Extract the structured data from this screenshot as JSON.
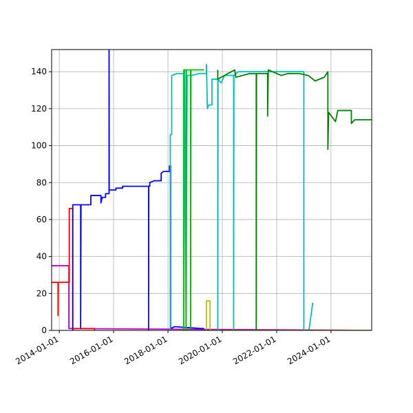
{
  "chart_data": {
    "type": "line",
    "title": "",
    "xlabel": "",
    "ylabel": "",
    "x_axis": {
      "type": "date",
      "range": [
        "2013-09-20",
        "2025-07-01"
      ],
      "ticks": [
        "2014-01-01",
        "2016-01-01",
        "2018-01-01",
        "2020-01-01",
        "2022-01-01",
        "2024-01-01"
      ],
      "tick_labels": [
        "2014-01-01",
        "2016-01-01",
        "2018-01-01",
        "2020-01-01",
        "2022-01-01",
        "2024-01-01"
      ]
    },
    "y_axis": {
      "range": [
        0,
        152
      ],
      "ticks": [
        0,
        20,
        40,
        60,
        80,
        100,
        120,
        140
      ],
      "tick_labels": [
        "0",
        "20",
        "40",
        "60",
        "80",
        "100",
        "120",
        "140"
      ]
    },
    "grid": true,
    "legend": "none",
    "series": [
      {
        "color": "#bf00bf",
        "points": [
          [
            "2013-09-20",
            35
          ],
          [
            "2014-05-10",
            35
          ],
          [
            "2014-05-10",
            1
          ],
          [
            "2014-06-01",
            1
          ],
          [
            "2025-07-01",
            0
          ]
        ]
      },
      {
        "color": "#ff0000",
        "points": [
          [
            "2013-09-20",
            26
          ],
          [
            "2013-12-15",
            26
          ],
          [
            "2013-12-15",
            8
          ],
          [
            "2013-12-18",
            26
          ],
          [
            "2014-05-15",
            26
          ],
          [
            "2014-05-15",
            66
          ],
          [
            "2014-07-01",
            66
          ],
          [
            "2014-07-01",
            1
          ],
          [
            "2014-09-01",
            1
          ],
          [
            "2015-04-20",
            1
          ],
          [
            "2015-04-20",
            0
          ]
        ]
      },
      {
        "color": "#0000ff",
        "points": [
          [
            "2014-07-01",
            0
          ],
          [
            "2014-07-01",
            68
          ],
          [
            "2014-10-15",
            68
          ],
          [
            "2014-10-15",
            1
          ],
          [
            "2014-10-20",
            68
          ],
          [
            "2015-03-01",
            68
          ],
          [
            "2015-03-01",
            73
          ],
          [
            "2015-07-15",
            73
          ],
          [
            "2015-07-15",
            69
          ],
          [
            "2015-08-01",
            72
          ],
          [
            "2015-09-15",
            72
          ],
          [
            "2015-09-15",
            74
          ],
          [
            "2015-11-01",
            74
          ],
          [
            "2015-11-01",
            152
          ],
          [
            "2015-11-03",
            76
          ],
          [
            "2016-02-01",
            76
          ],
          [
            "2016-02-01",
            77
          ],
          [
            "2016-05-01",
            77
          ],
          [
            "2016-05-01",
            78
          ],
          [
            "2017-04-15",
            78
          ],
          [
            "2017-04-15",
            0
          ],
          [
            "2017-04-17",
            78
          ],
          [
            "2017-05-01",
            78
          ],
          [
            "2017-05-01",
            80
          ],
          [
            "2017-07-01",
            81
          ],
          [
            "2017-10-01",
            81
          ],
          [
            "2017-10-01",
            85
          ],
          [
            "2017-11-01",
            86
          ],
          [
            "2018-01-20",
            86
          ],
          [
            "2018-01-20",
            89
          ],
          [
            "2018-02-05",
            89
          ],
          [
            "2018-02-05",
            1
          ],
          [
            "2018-04-01",
            2
          ],
          [
            "2019-04-01",
            1
          ],
          [
            "2019-05-01",
            1
          ]
        ]
      },
      {
        "color": "#00bfbf",
        "points": [
          [
            "2018-02-01",
            0
          ],
          [
            "2018-02-01",
            106
          ],
          [
            "2018-02-20",
            106
          ],
          [
            "2018-02-20",
            138
          ],
          [
            "2018-05-01",
            139
          ],
          [
            "2018-08-01",
            139
          ],
          [
            "2018-08-01",
            1
          ],
          [
            "2018-08-10",
            141
          ],
          [
            "2018-09-01",
            1
          ],
          [
            "2018-09-15",
            138
          ],
          [
            "2018-11-01",
            138
          ],
          [
            "2018-11-01",
            1
          ],
          [
            "2018-11-05",
            138
          ],
          [
            "2019-03-01",
            139
          ],
          [
            "2019-06-01",
            139
          ],
          [
            "2019-06-01",
            144
          ],
          [
            "2019-06-15",
            120
          ],
          [
            "2019-07-01",
            122
          ],
          [
            "2019-08-15",
            122
          ],
          [
            "2019-08-15",
            136
          ],
          [
            "2019-11-01",
            136
          ],
          [
            "2019-11-01",
            0
          ],
          [
            "2019-11-05",
            136
          ],
          [
            "2019-12-15",
            134
          ],
          [
            "2020-02-01",
            138
          ],
          [
            "2020-06-01",
            138
          ],
          [
            "2020-06-01",
            0
          ],
          [
            "2020-06-05",
            138
          ],
          [
            "2020-08-01",
            140
          ],
          [
            "2023-01-01",
            140
          ],
          [
            "2023-01-01",
            0
          ],
          [
            "2023-03-10",
            0
          ],
          [
            "2023-05-01",
            15
          ]
        ]
      },
      {
        "color": "#00bf00",
        "points": [
          [
            "2018-08-01",
            0
          ],
          [
            "2018-08-01",
            141
          ],
          [
            "2018-09-01",
            141
          ],
          [
            "2018-09-01",
            0
          ],
          [
            "2018-09-05",
            141
          ],
          [
            "2018-11-01",
            141
          ],
          [
            "2018-11-01",
            1
          ],
          [
            "2018-11-05",
            141
          ],
          [
            "2019-05-01",
            141
          ]
        ]
      },
      {
        "color": "#bfbf00",
        "points": [
          [
            "2019-06-01",
            0
          ],
          [
            "2019-06-01",
            16
          ],
          [
            "2019-07-20",
            16
          ],
          [
            "2019-07-20",
            0
          ],
          [
            "2025-07-01",
            0
          ]
        ]
      },
      {
        "color": "#008000",
        "points": [
          [
            "2019-11-01",
            141
          ],
          [
            "2019-11-01",
            136
          ],
          [
            "2020-06-15",
            141
          ],
          [
            "2020-07-01",
            137
          ],
          [
            "2021-01-01",
            139
          ],
          [
            "2021-04-01",
            139
          ],
          [
            "2021-04-01",
            0
          ],
          [
            "2021-04-05",
            139
          ],
          [
            "2021-09-01",
            139
          ],
          [
            "2021-09-01",
            116
          ],
          [
            "2021-09-10",
            141
          ],
          [
            "2022-03-01",
            138
          ],
          [
            "2022-06-01",
            139
          ],
          [
            "2022-11-01",
            139
          ],
          [
            "2023-03-01",
            138
          ],
          [
            "2023-06-01",
            135
          ],
          [
            "2023-10-01",
            137
          ],
          [
            "2023-11-20",
            140
          ],
          [
            "2023-11-20",
            98
          ],
          [
            "2023-12-01",
            118
          ],
          [
            "2024-03-01",
            113
          ],
          [
            "2024-04-01",
            119
          ],
          [
            "2024-10-01",
            119
          ],
          [
            "2024-10-01",
            112
          ],
          [
            "2024-11-15",
            114
          ],
          [
            "2025-07-01",
            114
          ]
        ]
      }
    ]
  }
}
